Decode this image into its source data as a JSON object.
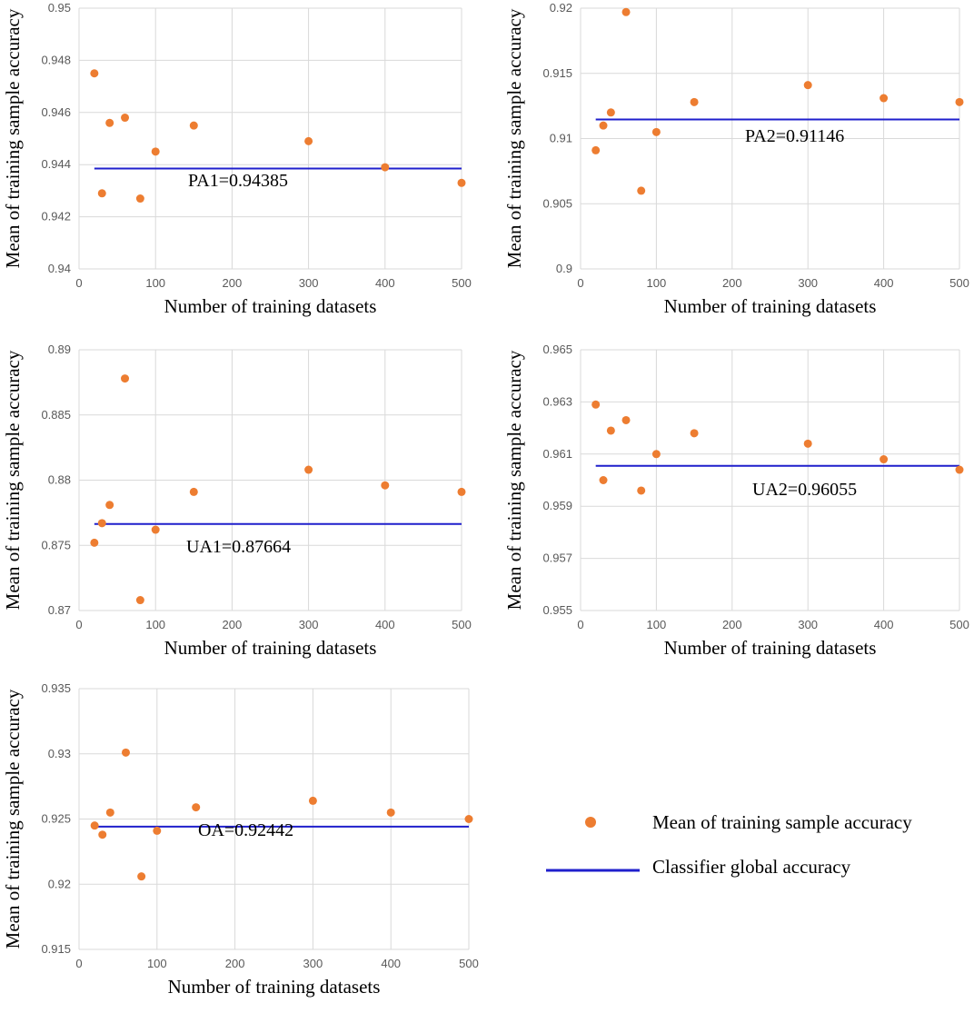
{
  "colors": {
    "point": "#ED7D31",
    "line": "#1F1FCC",
    "grid": "#D9D9D9",
    "tick_text": "#595959"
  },
  "legend": {
    "point_label": "Mean of training sample accuracy",
    "line_label": "Classifier global accuracy"
  },
  "chart_data": [
    {
      "type": "scatter",
      "id": "pa1",
      "xlabel": "Number of training datasets",
      "ylabel": "Mean of training sample accuracy",
      "xlim": [
        0,
        500
      ],
      "xticks": [
        0,
        100,
        200,
        300,
        400,
        500
      ],
      "xtick_labels": [
        "0",
        "100",
        "200",
        "300",
        "400",
        "500"
      ],
      "ylim": [
        0.94,
        0.95
      ],
      "yticks": [
        0.94,
        0.942,
        0.944,
        0.946,
        0.948,
        0.95
      ],
      "ytick_labels": [
        "0.94",
        "0.942",
        "0.944",
        "0.946",
        "0.948",
        "0.95"
      ],
      "x": [
        20,
        30,
        40,
        60,
        80,
        100,
        150,
        300,
        400,
        500
      ],
      "y": [
        0.9475,
        0.9429,
        0.9456,
        0.9458,
        0.9427,
        0.9445,
        0.9455,
        0.9449,
        0.9439,
        0.9433
      ],
      "reference": {
        "value": 0.94385,
        "x_start": 20,
        "x_end": 500,
        "label": "PA1=0.94385"
      }
    },
    {
      "type": "scatter",
      "id": "pa2",
      "xlabel": "Number of training datasets",
      "ylabel": "Mean of training sample accuracy",
      "xlim": [
        0,
        500
      ],
      "xticks": [
        0,
        100,
        200,
        300,
        400,
        500
      ],
      "xtick_labels": [
        "0",
        "100",
        "200",
        "300",
        "400",
        "500"
      ],
      "ylim": [
        0.9,
        0.92
      ],
      "yticks": [
        0.9,
        0.905,
        0.91,
        0.915,
        0.92
      ],
      "ytick_labels": [
        "0.9",
        "0.905",
        "0.91",
        "0.915",
        "0.92"
      ],
      "x": [
        20,
        30,
        40,
        60,
        80,
        100,
        150,
        300,
        400,
        500
      ],
      "y": [
        0.9091,
        0.911,
        0.912,
        0.9197,
        0.906,
        0.9105,
        0.9128,
        0.9141,
        0.9131,
        0.9128
      ],
      "reference": {
        "value": 0.91146,
        "x_start": 20,
        "x_end": 500,
        "label": "PA2=0.91146"
      }
    },
    {
      "type": "scatter",
      "id": "ua1",
      "xlabel": "Number of training datasets",
      "ylabel": "Mean of training sample accuracy",
      "xlim": [
        0,
        500
      ],
      "xticks": [
        0,
        100,
        200,
        300,
        400,
        500
      ],
      "xtick_labels": [
        "0",
        "100",
        "200",
        "300",
        "400",
        "500"
      ],
      "ylim": [
        0.87,
        0.89
      ],
      "yticks": [
        0.87,
        0.875,
        0.88,
        0.885,
        0.89
      ],
      "ytick_labels": [
        "0.87",
        "0.875",
        "0.88",
        "0.885",
        "0.89"
      ],
      "x": [
        20,
        30,
        40,
        60,
        80,
        100,
        150,
        300,
        400,
        500
      ],
      "y": [
        0.8752,
        0.8767,
        0.8781,
        0.8878,
        0.8708,
        0.8762,
        0.8791,
        0.8808,
        0.8796,
        0.8791
      ],
      "reference": {
        "value": 0.87664,
        "x_start": 20,
        "x_end": 500,
        "label": "UA1=0.87664"
      }
    },
    {
      "type": "scatter",
      "id": "ua2",
      "xlabel": "Number of training datasets",
      "ylabel": "Mean of training sample accuracy",
      "xlim": [
        0,
        500
      ],
      "xticks": [
        0,
        100,
        200,
        300,
        400,
        500
      ],
      "xtick_labels": [
        "0",
        "100",
        "200",
        "300",
        "400",
        "500"
      ],
      "ylim": [
        0.955,
        0.965
      ],
      "yticks": [
        0.955,
        0.957,
        0.959,
        0.961,
        0.963,
        0.965
      ],
      "ytick_labels": [
        "0.955",
        "0.957",
        "0.959",
        "0.961",
        "0.963",
        "0.965"
      ],
      "x": [
        20,
        30,
        40,
        60,
        80,
        100,
        150,
        300,
        400,
        500
      ],
      "y": [
        0.9629,
        0.96,
        0.9619,
        0.9623,
        0.9596,
        0.961,
        0.9618,
        0.9614,
        0.9608,
        0.9604
      ],
      "reference": {
        "value": 0.96055,
        "x_start": 20,
        "x_end": 500,
        "label": "UA2=0.96055"
      }
    },
    {
      "type": "scatter",
      "id": "oa",
      "xlabel": "Number of training datasets",
      "ylabel": "Mean of training sample accuracy",
      "xlim": [
        0,
        500
      ],
      "xticks": [
        0,
        100,
        200,
        300,
        400,
        500
      ],
      "xtick_labels": [
        "0",
        "100",
        "200",
        "300",
        "400",
        "500"
      ],
      "ylim": [
        0.915,
        0.935
      ],
      "yticks": [
        0.915,
        0.92,
        0.925,
        0.93,
        0.935
      ],
      "ytick_labels": [
        "0.915",
        "0.92",
        "0.925",
        "0.93",
        "0.935"
      ],
      "x": [
        20,
        30,
        40,
        60,
        80,
        100,
        150,
        300,
        400,
        500
      ],
      "y": [
        0.9245,
        0.9238,
        0.9255,
        0.9301,
        0.9206,
        0.9241,
        0.9259,
        0.9264,
        0.9255,
        0.925
      ],
      "reference": {
        "value": 0.92442,
        "x_start": 20,
        "x_end": 500,
        "label": "OA=0.92442"
      }
    }
  ]
}
